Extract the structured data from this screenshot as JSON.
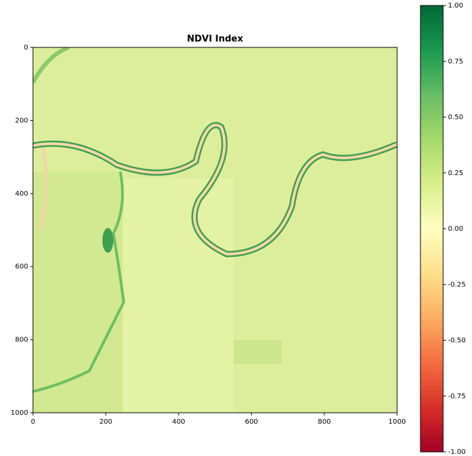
{
  "chart_data": {
    "type": "image",
    "title": "NDVI Index",
    "xlim": [
      0,
      1000
    ],
    "ylim": [
      1000,
      0
    ],
    "xticks": [
      0,
      200,
      400,
      600,
      800,
      1000
    ],
    "yticks": [
      0,
      200,
      400,
      600,
      800,
      1000
    ],
    "colorbar": {
      "lim": [
        -1,
        1
      ],
      "ticks": [
        {
          "value": -1,
          "label": "-1.00"
        },
        {
          "value": -0.75,
          "label": "-0.75"
        },
        {
          "value": -0.5,
          "label": "-0.50"
        },
        {
          "value": -0.25,
          "label": "-0.25"
        },
        {
          "value": 0,
          "label": "0.00"
        },
        {
          "value": 0.25,
          "label": "0.25"
        },
        {
          "value": 0.5,
          "label": "0.50"
        },
        {
          "value": 0.75,
          "label": "0.75"
        },
        {
          "value": 1,
          "label": "1.00"
        }
      ],
      "colors": [
        "#a50026",
        "#d73027",
        "#f46d43",
        "#fdae61",
        "#fee08b",
        "#ffffbf",
        "#d9ef8b",
        "#a6d96a",
        "#66bd63",
        "#1a9850",
        "#006837"
      ]
    }
  }
}
